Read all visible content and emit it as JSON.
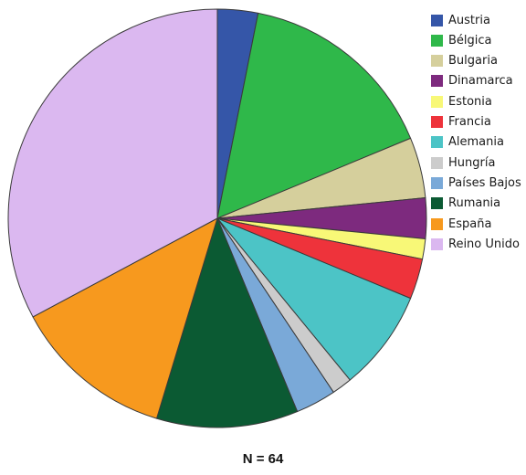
{
  "chart_data": {
    "type": "pie",
    "title": "",
    "note": "N = 64",
    "legend_position": "right",
    "start_angle_deg": 0,
    "direction": "clockwise",
    "categories": [
      "Austria",
      "Bélgica",
      "Bulgaria",
      "Dinamarca",
      "Estonia",
      "Francia",
      "Alemania",
      "Hungría",
      "Países Bajos",
      "Rumania",
      "España",
      "Reino Unido"
    ],
    "values": [
      2,
      10,
      3,
      2,
      1,
      2,
      5,
      1,
      2,
      7,
      8,
      21
    ],
    "colors": [
      "#3556a8",
      "#2fb84a",
      "#d5cf9c",
      "#7d2a7e",
      "#f8f877",
      "#ee333b",
      "#4cc4c6",
      "#cccccc",
      "#7aa9d8",
      "#0b5a33",
      "#f7991e",
      "#dbb8f0"
    ]
  }
}
